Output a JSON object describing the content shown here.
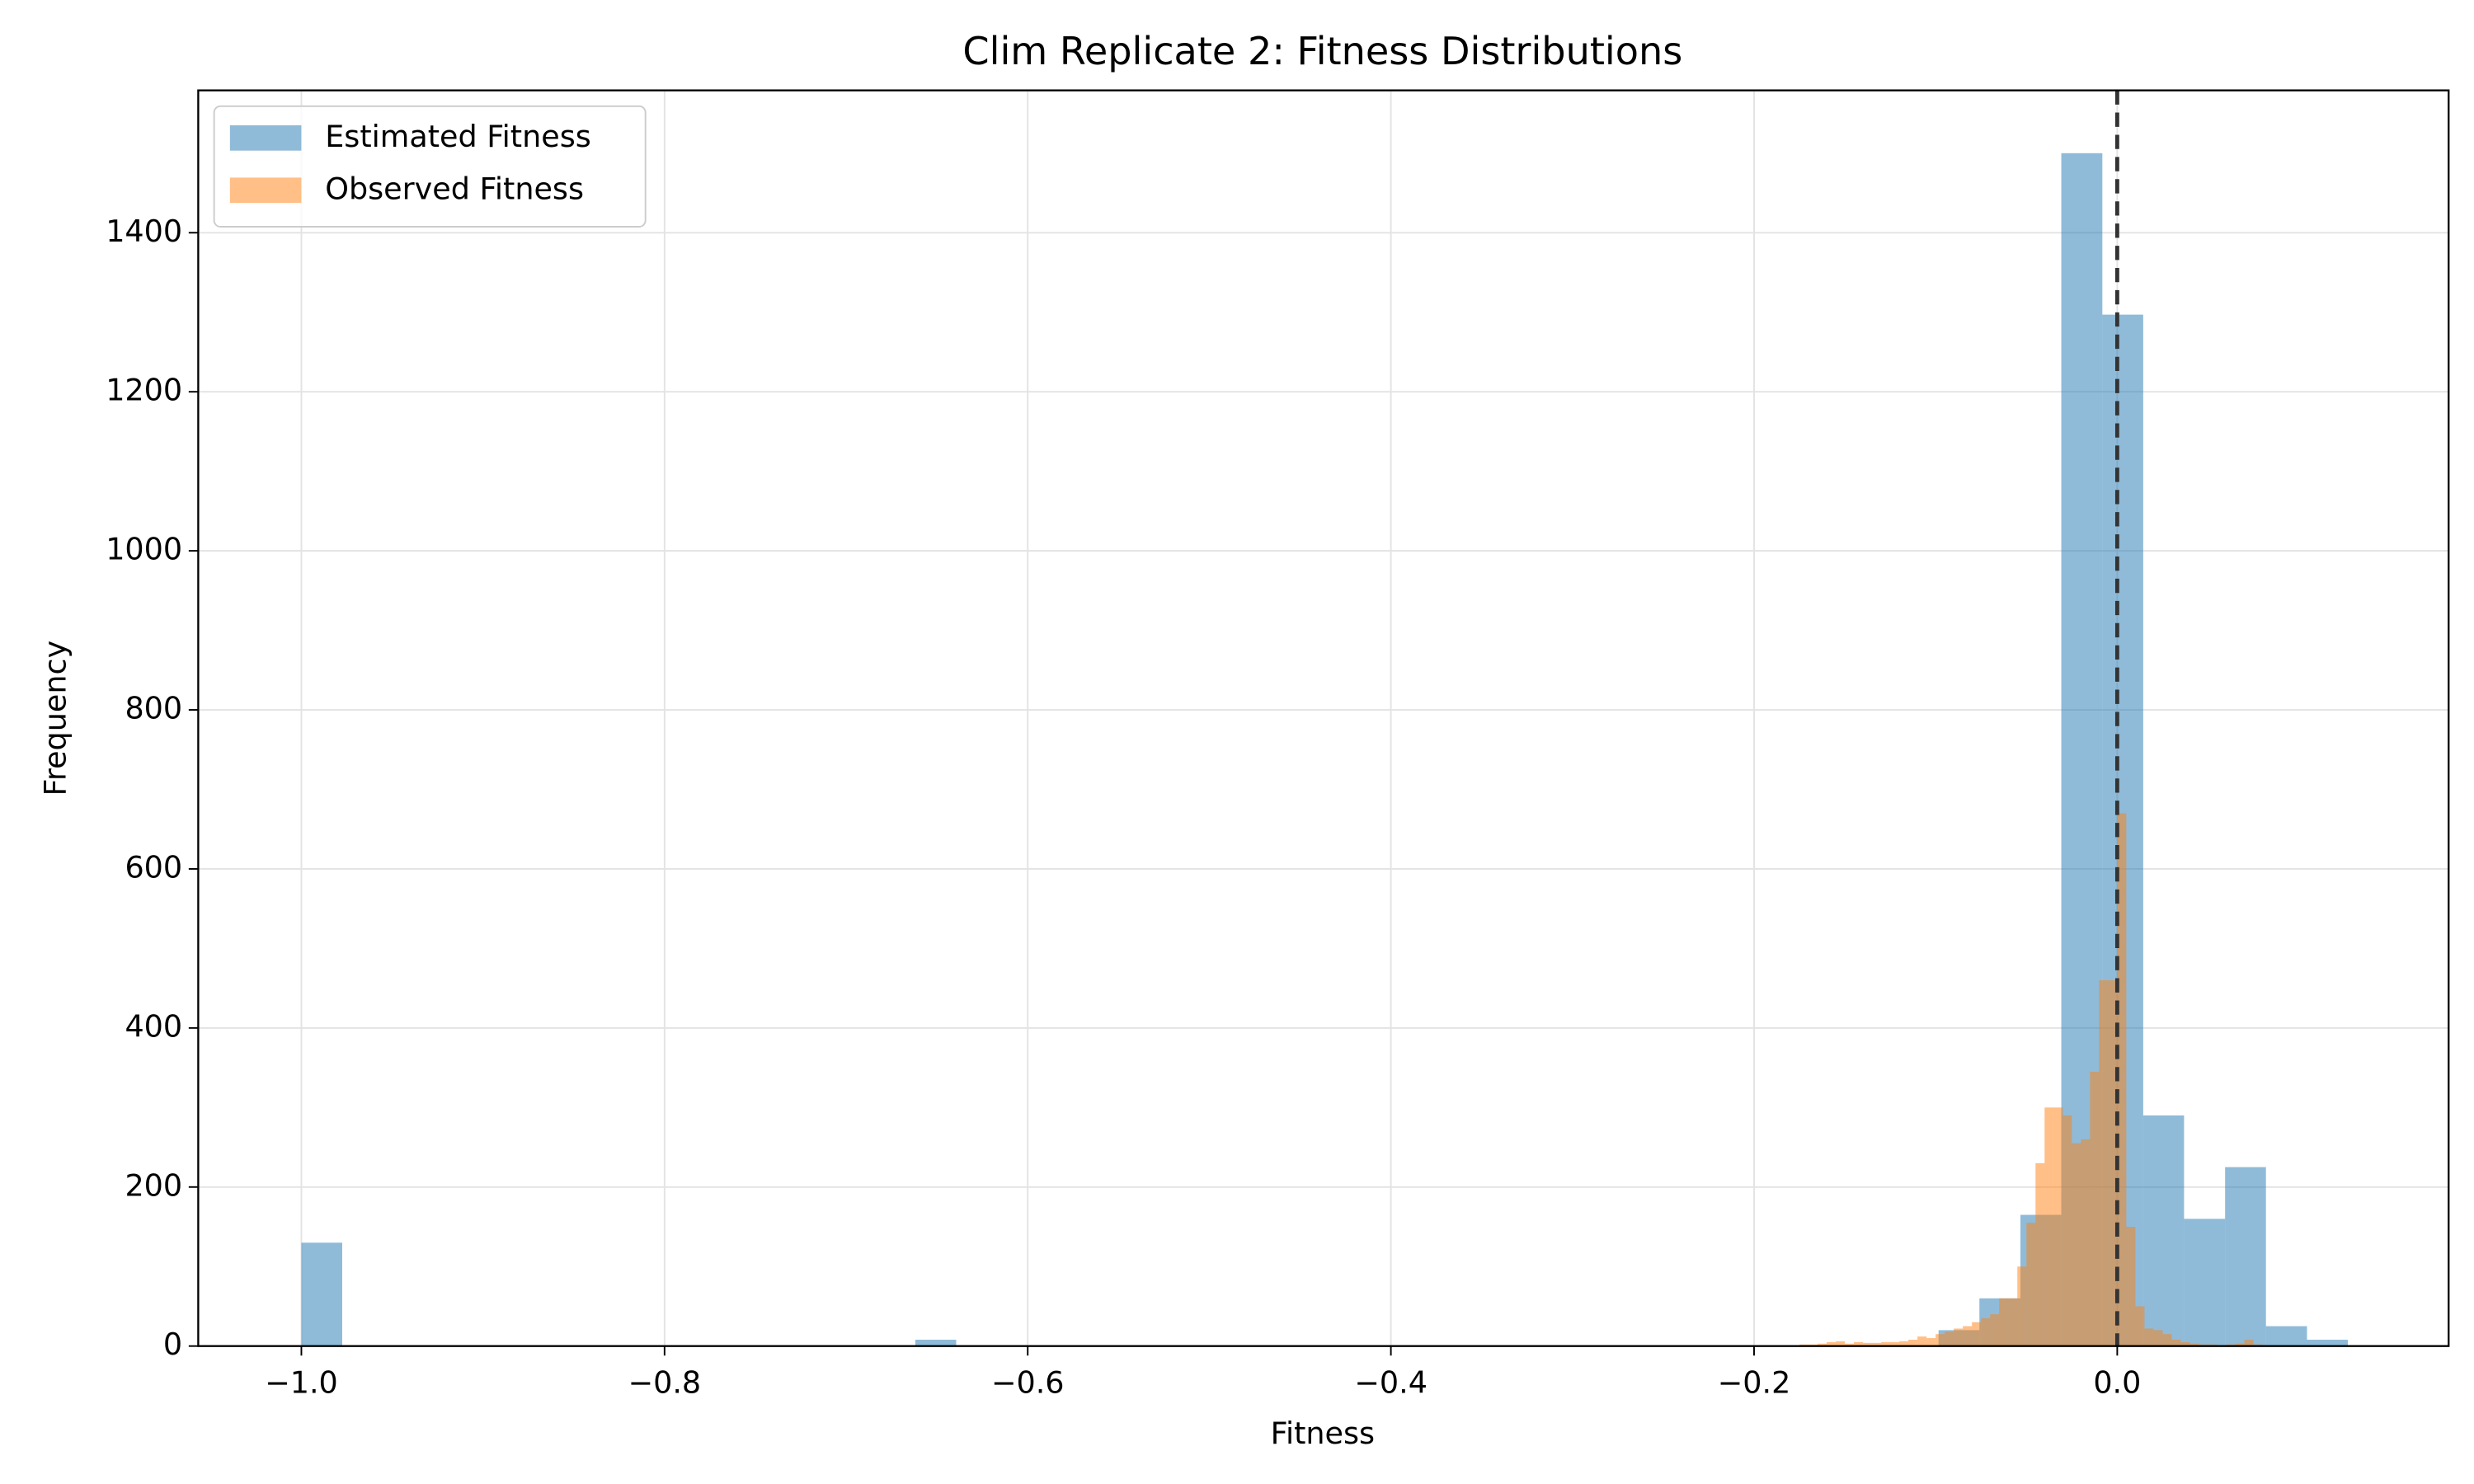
{
  "chart_data": {
    "type": "histogram",
    "title": "Clim Replicate 2: Fitness Distributions",
    "x_label": "Fitness",
    "y_label": "Frequency",
    "xlim": [
      -1.0568,
      0.1825
    ],
    "ylim": [
      0,
      1579
    ],
    "xticks": [
      {
        "value": -1.0,
        "label": "−1.0"
      },
      {
        "value": -0.8,
        "label": "−0.8"
      },
      {
        "value": -0.6,
        "label": "−0.6"
      },
      {
        "value": -0.4,
        "label": "−0.4"
      },
      {
        "value": -0.2,
        "label": "−0.2"
      },
      {
        "value": 0.0,
        "label": "0.0"
      }
    ],
    "yticks": [
      0,
      200,
      400,
      600,
      800,
      1000,
      1200,
      1400
    ],
    "grid": true,
    "legend": "upper left",
    "vline": 0,
    "series": [
      {
        "name": "Estimated Fitness",
        "color": "#1f77b4",
        "bins": [
          -1.0,
          -0.9775,
          -0.9549,
          -0.9324,
          -0.9098,
          -0.8873,
          -0.8648,
          -0.8422,
          -0.8197,
          -0.7971,
          -0.7746,
          -0.7521,
          -0.7295,
          -0.707,
          -0.6844,
          -0.6619,
          -0.6394,
          -0.6168,
          -0.5943,
          -0.5717,
          -0.5492,
          -0.5267,
          -0.5041,
          -0.4816,
          -0.459,
          -0.4365,
          -0.414,
          -0.3914,
          -0.3689,
          -0.3463,
          -0.3238,
          -0.3013,
          -0.2787,
          -0.2562,
          -0.2336,
          -0.2111,
          -0.1886,
          -0.166,
          -0.1435,
          -0.1209,
          -0.0984,
          -0.0759,
          -0.0533,
          -0.0308,
          -0.0082,
          0.0143,
          0.0368,
          0.0594,
          0.0819,
          0.1045,
          0.127
        ],
        "values": [
          130,
          0,
          0,
          0,
          0,
          0,
          0,
          0,
          0,
          0,
          0,
          0,
          0,
          0,
          0,
          8,
          0,
          0,
          0,
          0,
          0,
          0,
          0,
          0,
          0,
          0,
          0,
          0,
          0,
          0,
          0,
          0,
          0,
          0,
          0,
          0,
          0,
          0,
          0,
          0,
          20,
          60,
          165,
          1500,
          1297,
          290,
          160,
          225,
          25,
          8
        ]
      },
      {
        "name": "Observed Fitness",
        "color": "#ff7f0e",
        "bins": [
          -0.19,
          -0.185,
          -0.18,
          -0.175,
          -0.17,
          -0.165,
          -0.16,
          -0.155,
          -0.15,
          -0.145,
          -0.14,
          -0.135,
          -0.13,
          -0.125,
          -0.12,
          -0.115,
          -0.11,
          -0.105,
          -0.1,
          -0.095,
          -0.09,
          -0.085,
          -0.08,
          -0.075,
          -0.07,
          -0.065,
          -0.06,
          -0.055,
          -0.05,
          -0.045,
          -0.04,
          -0.035,
          -0.03,
          -0.025,
          -0.02,
          -0.015,
          -0.01,
          -0.005,
          0.0,
          0.005,
          0.01,
          0.015,
          0.02,
          0.025,
          0.03,
          0.035,
          0.04,
          0.045,
          0.05,
          0.055,
          0.06,
          0.065,
          0.07,
          0.075,
          0.08,
          0.085
        ],
        "values": [
          0,
          0,
          1,
          2,
          2,
          3,
          5,
          6,
          3,
          5,
          4,
          4,
          5,
          5,
          6,
          8,
          12,
          10,
          15,
          18,
          22,
          25,
          30,
          35,
          40,
          60,
          60,
          100,
          155,
          230,
          300,
          300,
          290,
          255,
          260,
          345,
          460,
          460,
          670,
          150,
          50,
          22,
          20,
          15,
          8,
          5,
          3,
          2,
          2,
          1,
          2,
          3,
          8,
          2,
          0
        ]
      }
    ]
  }
}
